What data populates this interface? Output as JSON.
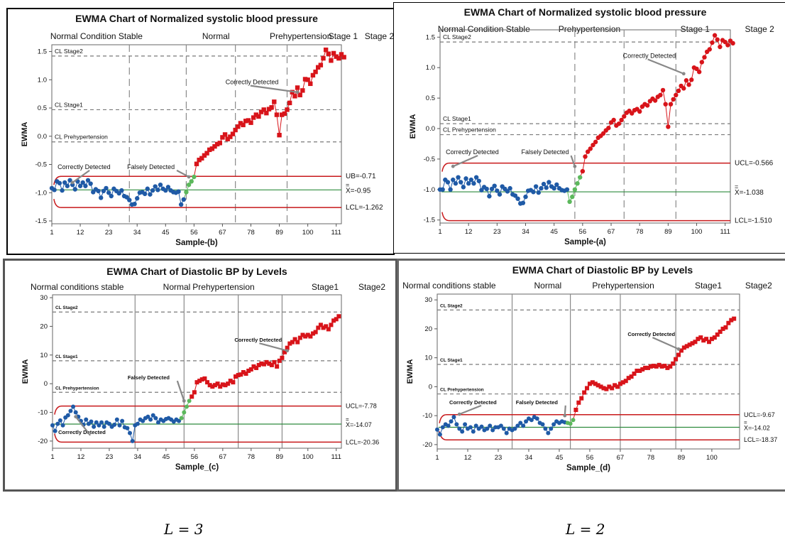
{
  "captions": [
    "L = 3",
    "L = 2"
  ],
  "colors": {
    "in_control": "#1f5aa6",
    "transition": "#5cb85c",
    "out_control": "#d8141a",
    "limit": "#c8191b",
    "center": "#2e8b3e",
    "cl_line": "#7a7a7a",
    "stage_line": "#8a8a8a"
  },
  "chart_data": [
    {
      "type": "line",
      "title": "EWMA Chart of Normalized systolic blood pressure",
      "xlabel": "Sample-(b)",
      "ylabel": "EWMA",
      "xlim": [
        1,
        113
      ],
      "ylim": [
        -1.55,
        1.62
      ],
      "xticks": [
        "1",
        "12",
        "23",
        "34",
        "45",
        "56",
        "67",
        "78",
        "89",
        "100",
        "111"
      ],
      "yticks": [
        "-1.5",
        "-1.0",
        "-0.5",
        "0.0",
        "0.5",
        "1.0",
        "1.5"
      ],
      "phase_labels": [
        "Normal Condition Stable",
        "Normal",
        "Prehypertension",
        "Stage 1",
        "Stage 2"
      ],
      "phase_boundaries": [
        31,
        53,
        72,
        92
      ],
      "reference_lines": [
        {
          "label": "CL Stage2",
          "value": 1.42
        },
        {
          "label": "CL Stage1",
          "value": 0.47
        },
        {
          "label": "CL Prehypertension",
          "value": -0.1
        }
      ],
      "ucl": -0.71,
      "center": -0.95,
      "lcl": -1.262,
      "limit_labels": [
        "UB=-0.71",
        "X=-0.95",
        "LCL=-1.262"
      ],
      "annotations": [
        "Correctly Detected",
        "Falsely Detected",
        "Correctly Detected"
      ],
      "series": [
        {
          "values": [
            -0.92,
            -0.95,
            -0.8,
            -0.83,
            -0.96,
            -0.82,
            -0.88,
            -0.78,
            -0.86,
            -0.94,
            -0.8,
            -0.88,
            -0.82,
            -0.88,
            -0.78,
            -0.84,
            -0.99,
            -0.94,
            -0.97,
            -1.09,
            -0.97,
            -0.92,
            -1.0,
            -1.06,
            -0.93,
            -0.97,
            -1.01,
            -0.96,
            -1.06,
            -1.08,
            -1.13,
            -1.21,
            -1.2,
            -1.1,
            -1.0,
            -0.99,
            -1.02,
            -0.93,
            -1.03,
            -0.96,
            -0.89,
            -0.95,
            -0.86,
            -0.93,
            -0.96,
            -0.9,
            -0.96,
            -0.99,
            -1.0,
            -0.98,
            -1.21,
            -1.12,
            -0.99,
            -0.86,
            -0.8,
            -0.72,
            -0.49,
            -0.42,
            -0.39,
            -0.34,
            -0.3,
            -0.24,
            -0.22,
            -0.18,
            -0.14,
            -0.12,
            -0.02,
            0.03,
            -0.05,
            -0.01,
            0.04,
            0.11,
            0.17,
            0.23,
            0.2,
            0.27,
            0.28,
            0.24,
            0.33,
            0.38,
            0.35,
            0.43,
            0.47,
            0.41,
            0.48,
            0.51,
            0.61,
            0.38,
            0.02,
            0.38,
            0.4,
            0.47,
            0.59,
            0.78,
            0.71,
            0.86,
            0.73,
            0.81,
            1.01,
            1.0,
            0.93,
            1.08,
            1.14,
            1.22,
            1.26,
            1.38,
            1.53,
            1.46,
            1.34,
            1.47,
            1.41,
            1.38,
            1.45,
            1.4
          ],
          "green_range": [
            53,
            56
          ],
          "red_from": 57
        }
      ]
    },
    {
      "type": "line",
      "title": "EWMA Chart of Normalized systolic blood pressure",
      "xlabel": "Sample-(a)",
      "ylabel": "EWMA",
      "xlim": [
        1,
        113
      ],
      "ylim": [
        -1.55,
        1.62
      ],
      "xticks": [
        "1",
        "12",
        "23",
        "34",
        "45",
        "56",
        "67",
        "78",
        "89",
        "100",
        "111"
      ],
      "yticks": [
        "-1.5",
        "-1.0",
        "-0.5",
        "0.0",
        "0.5",
        "1.0",
        "1.5"
      ],
      "phase_labels": [
        "Normal Condition Stable",
        "Prehypertension",
        "Stage 1",
        "Stage 2"
      ],
      "phase_boundaries": [
        53,
        72,
        92
      ],
      "reference_lines": [
        {
          "label": "CL Stage2",
          "value": 1.42
        },
        {
          "label": "CL Stage1",
          "value": 0.08
        },
        {
          "label": "CL Prehypertension",
          "value": -0.1
        }
      ],
      "ucl": -0.566,
      "center": -1.038,
      "lcl": -1.51,
      "limit_labels": [
        "UCL=-0.566",
        "X=-1.038",
        "LCL=-1.510"
      ],
      "annotations": [
        "Correctly Detected",
        "Falsely Detected",
        "Correctly Detected"
      ],
      "series": [
        {
          "values": [
            -1.0,
            -1.0,
            -0.84,
            -0.88,
            -1.0,
            -0.84,
            -0.9,
            -0.8,
            -0.88,
            -0.96,
            -0.82,
            -0.9,
            -0.84,
            -0.9,
            -0.8,
            -0.86,
            -1.01,
            -0.96,
            -0.99,
            -1.11,
            -0.99,
            -0.94,
            -1.02,
            -1.08,
            -0.95,
            -0.99,
            -1.03,
            -0.98,
            -1.08,
            -1.1,
            -1.15,
            -1.23,
            -1.22,
            -1.12,
            -1.02,
            -1.01,
            -1.04,
            -0.95,
            -1.05,
            -0.98,
            -0.91,
            -0.97,
            -0.88,
            -0.95,
            -0.98,
            -0.92,
            -0.98,
            -1.01,
            -1.02,
            -1.0,
            -1.2,
            -1.12,
            -1.0,
            -0.9,
            -0.8,
            -0.7,
            -0.46,
            -0.38,
            -0.33,
            -0.27,
            -0.22,
            -0.15,
            -0.12,
            -0.08,
            -0.03,
            0.01,
            0.1,
            0.14,
            0.05,
            0.08,
            0.14,
            0.2,
            0.26,
            0.29,
            0.25,
            0.3,
            0.32,
            0.28,
            0.36,
            0.4,
            0.38,
            0.45,
            0.49,
            0.46,
            0.52,
            0.55,
            0.63,
            0.4,
            0.03,
            0.4,
            0.48,
            0.55,
            0.62,
            0.7,
            0.66,
            0.79,
            0.72,
            0.8,
            1.0,
            0.98,
            0.93,
            1.09,
            1.17,
            1.26,
            1.3,
            1.41,
            1.53,
            1.46,
            1.34,
            1.45,
            1.42,
            1.37,
            1.44,
            1.4
          ],
          "green_range": [
            51,
            55
          ],
          "red_from": 56
        }
      ]
    },
    {
      "type": "line",
      "title": "EWMA Chart of Diastolic BP by Levels",
      "xlabel": "Sample_(c)",
      "ylabel": "EWMA",
      "xlim": [
        1,
        113
      ],
      "ylim": [
        -22.5,
        31
      ],
      "xticks": [
        "1",
        "12",
        "23",
        "34",
        "45",
        "56",
        "67",
        "78",
        "89",
        "100",
        "111"
      ],
      "yticks": [
        "-20",
        "-10",
        "0",
        "10",
        "20",
        "30"
      ],
      "phase_labels": [
        "Normal conditions stable",
        "Normal",
        "Prehypertension",
        "Stage1",
        "Stage2"
      ],
      "phase_boundaries": [
        33,
        52,
        73,
        90
      ],
      "reference_lines": [
        {
          "label": "CL Stage2",
          "value": 25
        },
        {
          "label": "CL Stage1",
          "value": 8
        },
        {
          "label": "CL Prehypertension",
          "value": -3
        }
      ],
      "ucl": -7.78,
      "center": -14.07,
      "lcl": -20.36,
      "limit_labels": [
        "UCL=-7.78",
        "X=-14.07",
        "LCL=-20.36"
      ],
      "annotations": [
        "Correctly Detected",
        "Falsely Detected",
        "Correctly Detected"
      ],
      "series": [
        {
          "values": [
            -14.5,
            -16.5,
            -14.0,
            -12.8,
            -14.5,
            -11.8,
            -11.0,
            -9.5,
            -8.0,
            -10.0,
            -11.5,
            -13.0,
            -14.3,
            -12.5,
            -14.0,
            -13.2,
            -15.0,
            -13.5,
            -14.5,
            -13.5,
            -15.0,
            -13.5,
            -14.0,
            -15.0,
            -14.3,
            -12.5,
            -14.5,
            -13.0,
            -15.2,
            -15.5,
            -17.2,
            -20.0,
            -14.5,
            -14.0,
            -12.5,
            -13.0,
            -12.0,
            -11.5,
            -12.5,
            -11.0,
            -12.0,
            -13.5,
            -12.5,
            -13.0,
            -12.3,
            -12.0,
            -12.5,
            -13.2,
            -12.5,
            -13.0,
            -12.0,
            -10.0,
            -8.0,
            -6.0,
            -4.5,
            -3.0,
            0.5,
            1.0,
            1.5,
            1.8,
            0.5,
            -0.5,
            -1.0,
            -0.5,
            0.0,
            -1.0,
            -0.3,
            -0.5,
            0.0,
            1.0,
            0.5,
            2.5,
            3.0,
            3.2,
            4.0,
            3.5,
            4.5,
            5.0,
            6.0,
            5.5,
            6.5,
            7.0,
            6.8,
            7.5,
            7.0,
            6.5,
            7.5,
            6.0,
            8.0,
            9.0,
            11.0,
            12.5,
            14.0,
            14.5,
            15.5,
            14.5,
            16.0,
            17.0,
            16.5,
            17.0,
            16.5,
            17.5,
            18.0,
            19.5,
            20.5,
            19.5,
            20.0,
            19.0,
            20.5,
            22.0,
            22.5,
            23.5
          ],
          "green_range": [
            51,
            54
          ],
          "red_from": 55
        }
      ]
    },
    {
      "type": "line",
      "title": "EWMA Chart of Diastolic BP by Levels",
      "xlabel": "Sample_(d)",
      "ylabel": "EWMA",
      "xlim": [
        1,
        110
      ],
      "ylim": [
        -21.5,
        32
      ],
      "xticks": [
        "1",
        "12",
        "23",
        "34",
        "45",
        "56",
        "67",
        "78",
        "89",
        "100"
      ],
      "yticks": [
        "-20",
        "-10",
        "0",
        "10",
        "20",
        "30"
      ],
      "phase_labels": [
        "Normal conditions stable",
        "Normal",
        "Prehypertension",
        "Stage1",
        "Stage2"
      ],
      "phase_boundaries": [
        28,
        49,
        67,
        87
      ],
      "reference_lines": [
        {
          "label": "CL Stage2",
          "value": 26.5
        },
        {
          "label": "CL Stage1",
          "value": 7.7
        },
        {
          "label": "CL Prehypertension",
          "value": -2.5
        }
      ],
      "ucl": -9.67,
      "center": -14.02,
      "lcl": -18.37,
      "limit_labels": [
        "UCL=-9.67",
        "X=-14.02",
        "LCL=-18.37"
      ],
      "annotations": [
        "Correctly Detected",
        "Falsely Detected",
        "Correctly Detected"
      ],
      "series": [
        {
          "values": [
            -14.8,
            -16.5,
            -14.0,
            -13.0,
            -13.5,
            -12.0,
            -10.5,
            -13.0,
            -14.5,
            -15.5,
            -13.0,
            -14.5,
            -14.0,
            -15.5,
            -13.5,
            -14.5,
            -13.8,
            -15.0,
            -14.5,
            -13.5,
            -15.0,
            -14.0,
            -14.0,
            -13.5,
            -14.5,
            -16.0,
            -14.5,
            -15.0,
            -14.5,
            -13.5,
            -12.5,
            -13.5,
            -12.0,
            -11.0,
            -11.5,
            -10.5,
            -11.0,
            -12.5,
            -13.0,
            -14.5,
            -16.0,
            -14.5,
            -13.0,
            -12.0,
            -12.5,
            -12.0,
            -12.3,
            -12.5,
            -12.8,
            -11.5,
            -8.0,
            -5.5,
            -4.0,
            -2.0,
            -0.5,
            1.0,
            1.5,
            1.0,
            0.5,
            0.0,
            -0.5,
            -0.8,
            0.0,
            -0.5,
            0.5,
            0.0,
            1.0,
            1.5,
            2.0,
            3.0,
            3.5,
            4.5,
            5.5,
            5.5,
            6.0,
            6.5,
            6.5,
            7.0,
            7.2,
            7.0,
            7.5,
            7.0,
            7.2,
            6.5,
            7.0,
            8.0,
            9.5,
            11.0,
            12.5,
            13.5,
            14.0,
            14.5,
            15.0,
            15.5,
            16.5,
            17.0,
            16.0,
            16.5,
            15.5,
            16.5,
            17.0,
            18.0,
            19.0,
            20.0,
            20.5,
            22.0,
            23.0,
            23.5
          ],
          "green_range": [
            48,
            50
          ],
          "red_from": 51
        }
      ]
    }
  ]
}
